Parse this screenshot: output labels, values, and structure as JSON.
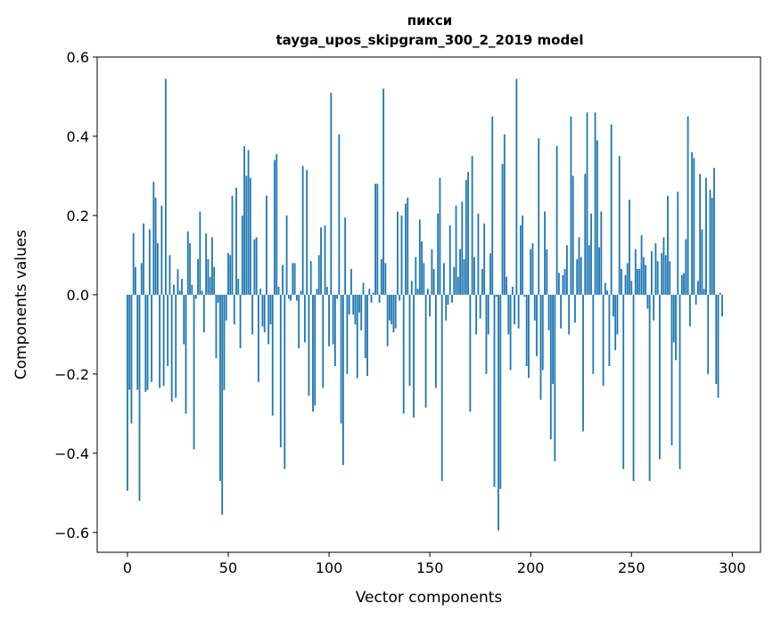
{
  "chart_data": {
    "type": "bar",
    "title": "пикси",
    "subtitle": "tayga_upos_skipgram_300_2_2019 model",
    "xlabel": "Vector components",
    "ylabel": "Components values",
    "xlim": [
      -15,
      314
    ],
    "ylim": [
      -0.65,
      0.6
    ],
    "xticks": [
      0,
      50,
      100,
      150,
      200,
      250,
      300
    ],
    "xtick_labels": [
      "0",
      "50",
      "100",
      "150",
      "200",
      "250",
      "300"
    ],
    "yticks": [
      -0.6,
      -0.4,
      -0.2,
      0.0,
      0.2,
      0.4,
      0.6
    ],
    "ytick_labels": [
      "−0.6",
      "−0.4",
      "−0.2",
      "0.0",
      "0.2",
      "0.4",
      "0.6"
    ],
    "bar_color": "#1f77b4",
    "grid": false,
    "values": [
      -0.495,
      -0.24,
      -0.325,
      0.155,
      0.07,
      -0.24,
      -0.52,
      0.08,
      0.18,
      -0.245,
      -0.24,
      0.165,
      -0.22,
      0.285,
      0.245,
      0.13,
      -0.235,
      0.225,
      -0.23,
      0.545,
      -0.18,
      0.1,
      -0.27,
      0.025,
      -0.26,
      0.065,
      0.01,
      0.04,
      -0.125,
      -0.3,
      0.16,
      0.13,
      0.025,
      -0.39,
      -0.01,
      0.09,
      0.21,
      0.01,
      -0.095,
      0.155,
      0.09,
      0.045,
      0.145,
      0.07,
      -0.16,
      -0.02,
      -0.47,
      -0.555,
      -0.24,
      -0.065,
      0.105,
      0.1,
      0.25,
      -0.075,
      0.27,
      0.04,
      -0.135,
      0.2,
      0.375,
      0.3,
      0.365,
      0.295,
      -0.1,
      0.14,
      0.145,
      -0.22,
      0.015,
      -0.08,
      -0.095,
      0.25,
      -0.125,
      -0.075,
      -0.305,
      0.34,
      0.355,
      0.02,
      -0.385,
      0.075,
      -0.44,
      0.2,
      -0.01,
      -0.015,
      0.08,
      0.08,
      -0.015,
      -0.135,
      0.01,
      0.325,
      -0.12,
      0.315,
      -0.255,
      0.085,
      -0.295,
      -0.28,
      0.015,
      0.1,
      0.17,
      -0.235,
      0.175,
      0.02,
      -0.13,
      0.51,
      -0.125,
      -0.18,
      -0.01,
      0.405,
      -0.325,
      -0.43,
      0.195,
      -0.2,
      -0.05,
      0.065,
      -0.05,
      -0.075,
      -0.21,
      -0.045,
      -0.09,
      0.03,
      -0.16,
      -0.205,
      0.015,
      -0.02,
      0.005,
      0.28,
      0.28,
      -0.02,
      0.09,
      0.52,
      0.08,
      -0.13,
      -0.065,
      -0.075,
      -0.095,
      -0.085,
      0.21,
      -0.015,
      0.2,
      -0.3,
      0.23,
      0.245,
      -0.23,
      0.035,
      -0.31,
      0.095,
      0.015,
      0.19,
      0.135,
      0.08,
      -0.285,
      0.015,
      -0.055,
      0.115,
      0.065,
      -0.235,
      0.205,
      0.295,
      -0.47,
      0.08,
      -0.065,
      -0.025,
      0.175,
      -0.02,
      0.07,
      0.225,
      0.045,
      0.115,
      0.235,
      0.09,
      0.29,
      0.31,
      -0.295,
      0.35,
      0.095,
      -0.1,
      0.205,
      -0.06,
      0.065,
      0.18,
      -0.2,
      -0.1,
      0.105,
      0.45,
      -0.485,
      -0.005,
      -0.595,
      -0.49,
      0.33,
      0.405,
      0.045,
      -0.1,
      -0.19,
      0.02,
      -0.075,
      0.545,
      -0.085,
      0.175,
      0.2,
      -0.005,
      -0.18,
      -0.21,
      0.115,
      0.13,
      -0.065,
      -0.155,
      0.395,
      -0.265,
      -0.19,
      0.21,
      0.115,
      -0.09,
      -0.365,
      -0.225,
      -0.42,
      0.375,
      0.055,
      -0.085,
      0.05,
      0.065,
      0.125,
      -0.1,
      0.45,
      0.3,
      -0.07,
      0.09,
      0.145,
      0.095,
      -0.345,
      0.305,
      0.46,
      0.125,
      0.205,
      -0.2,
      0.46,
      0.39,
      0.12,
      0.21,
      -0.23,
      0.03,
      0.01,
      -0.18,
      0.43,
      -0.055,
      -0.14,
      -0.1,
      0.35,
      0.065,
      -0.44,
      0.05,
      0.08,
      0.24,
      0.035,
      -0.47,
      0.115,
      0.065,
      0.065,
      0.15,
      0.095,
      0.075,
      -0.035,
      -0.47,
      0.11,
      -0.065,
      0.13,
      0.085,
      -0.415,
      0.105,
      0.145,
      0.1,
      0.25,
      0.085,
      -0.38,
      -0.12,
      -0.165,
      0.26,
      -0.44,
      0.05,
      0.055,
      0.14,
      0.45,
      -0.08,
      0.36,
      0.345,
      -0.025,
      0.035,
      0.305,
      0.165,
      0.015,
      0.295,
      -0.2,
      0.265,
      0.245,
      0.32,
      -0.225,
      -0.26,
      0.005,
      -0.055
    ]
  }
}
